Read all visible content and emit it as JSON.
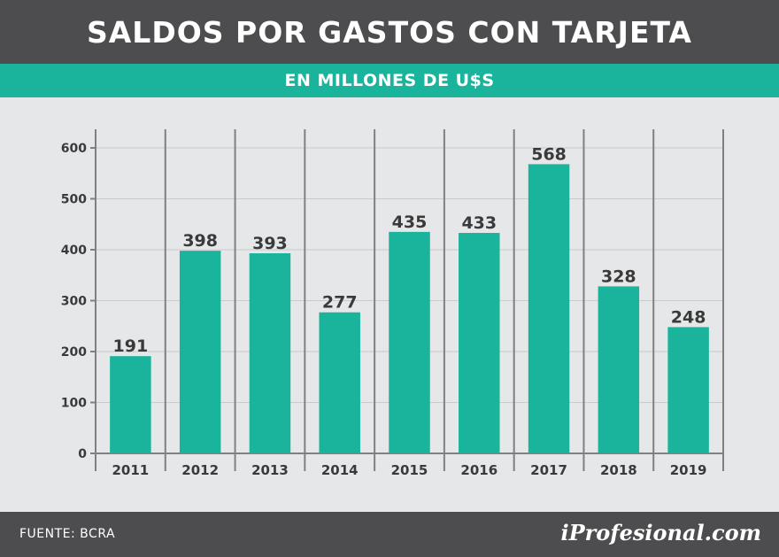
{
  "header": {
    "title": "SALDOS POR GASTOS CON TARJETA"
  },
  "subheader": {
    "title": "EN MILLONES DE U$S"
  },
  "footer": {
    "source": "FUENTE: BCRA",
    "logo": "iProfesional.com"
  },
  "colors": {
    "bar": "#1ab49c",
    "header": "#4d4d4f",
    "plot_bg": "#e6e7e8",
    "axis": "#808080",
    "text": "#3a3a3a"
  },
  "chart_data": {
    "type": "bar",
    "title": "SALDOS POR GASTOS CON TARJETA",
    "subtitle": "EN MILLONES DE U$S",
    "categories": [
      "2011",
      "2012",
      "2013",
      "2014",
      "2015",
      "2016",
      "2017",
      "2018",
      "2019"
    ],
    "values": [
      191,
      398,
      393,
      277,
      435,
      433,
      568,
      328,
      248
    ],
    "ylim": [
      0,
      600
    ],
    "yticks": [
      0,
      100,
      200,
      300,
      400,
      500,
      600
    ],
    "data_labels": true,
    "grid": true,
    "legend": "none"
  }
}
